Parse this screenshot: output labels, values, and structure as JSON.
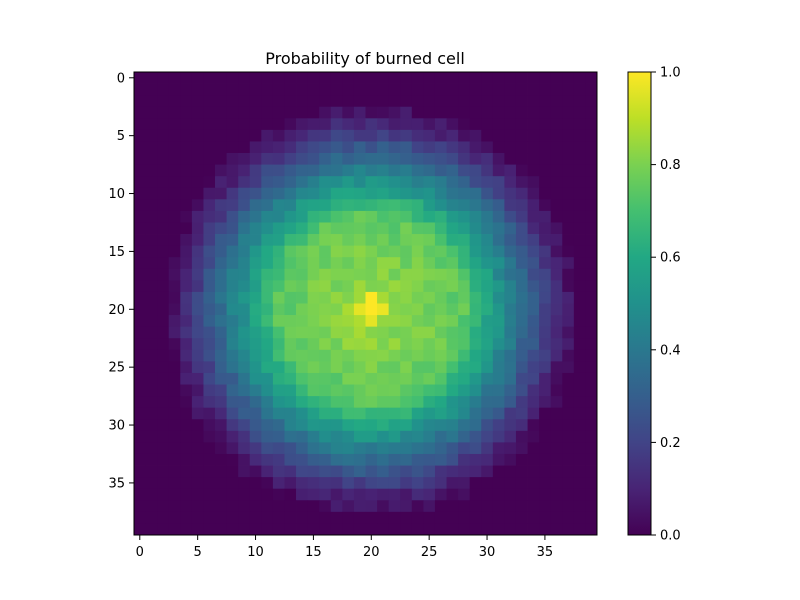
{
  "chart_data": {
    "type": "heatmap",
    "title": "Probability of burned cell",
    "grid_size": [
      40,
      40
    ],
    "x_ticks": [
      0,
      5,
      10,
      15,
      20,
      25,
      30,
      35
    ],
    "y_ticks": [
      0,
      5,
      10,
      15,
      20,
      25,
      30,
      35
    ],
    "value_range": [
      0.0,
      1.0
    ],
    "colormap": "viridis",
    "colorbar_ticks": [
      "0.0",
      "0.2",
      "0.4",
      "0.6",
      "0.8",
      "1.0"
    ],
    "field": {
      "center": [
        20,
        20
      ],
      "peak_value": 1.0,
      "plateau_value": 0.85,
      "plateau_radius": 8,
      "edge_radius": 16,
      "zero_radius": 18
    }
  }
}
